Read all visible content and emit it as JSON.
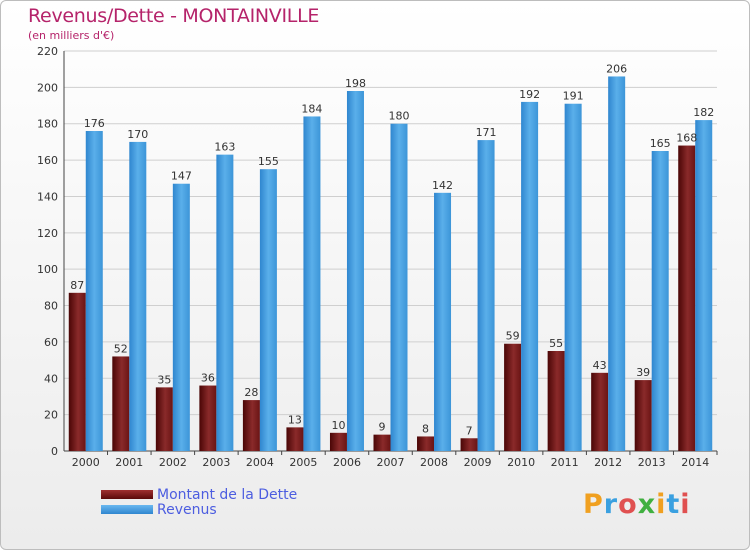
{
  "header": {
    "title": "Revenus/Dette - MONTAINVILLE",
    "subtitle": "(en milliers d'€)"
  },
  "legend": {
    "items": [
      {
        "label": "Montant de la Dette",
        "color": "#7a1a1a"
      },
      {
        "label": "Revenus",
        "color": "#4a9fe0"
      }
    ]
  },
  "logo": {
    "text": "Proxiti",
    "colors": [
      "#f0a020",
      "#3aa0e0",
      "#e05050",
      "#40b040",
      "#f0a020",
      "#3aa0e0",
      "#e05050"
    ]
  },
  "chart_data": {
    "type": "bar",
    "title": "Revenus/Dette - MONTAINVILLE",
    "subtitle": "(en milliers d'€)",
    "categories": [
      "2000",
      "2001",
      "2002",
      "2003",
      "2004",
      "2005",
      "2006",
      "2007",
      "2008",
      "2009",
      "2010",
      "2011",
      "2012",
      "2013",
      "2014"
    ],
    "series": [
      {
        "name": "Montant de la Dette",
        "color": "#7a1a1a",
        "values": [
          87,
          52,
          35,
          36,
          28,
          13,
          10,
          9,
          8,
          7,
          59,
          55,
          43,
          39,
          168
        ]
      },
      {
        "name": "Revenus",
        "color": "#4a9fe0",
        "values": [
          176,
          170,
          147,
          163,
          155,
          184,
          198,
          180,
          142,
          171,
          192,
          191,
          206,
          165,
          182
        ]
      }
    ],
    "ylim": [
      0,
      220
    ],
    "yticks": [
      0,
      20,
      40,
      60,
      80,
      100,
      120,
      140,
      160,
      180,
      200,
      220
    ],
    "grid": true,
    "xlabel": "",
    "ylabel": ""
  }
}
